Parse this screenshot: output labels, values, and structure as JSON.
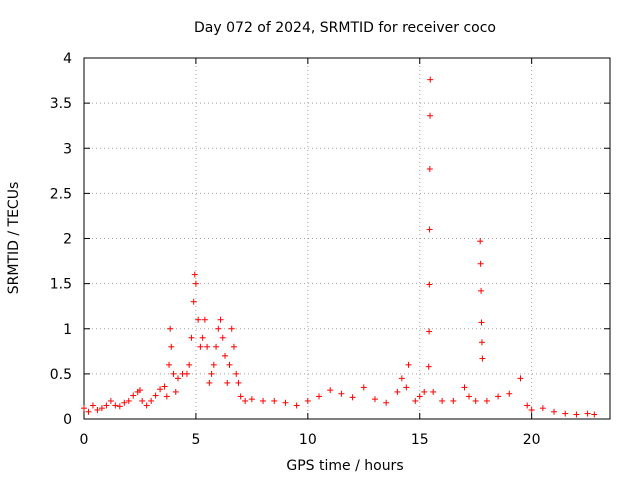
{
  "chart_data": {
    "type": "scatter",
    "title": "Day 072 of 2024, SRMTID for receiver coco",
    "xlabel": "GPS time / hours",
    "ylabel": "SRMTID / TECUs",
    "xlim": [
      0,
      23.5
    ],
    "ylim": [
      0,
      4
    ],
    "xticks": [
      0,
      5,
      10,
      15,
      20
    ],
    "yticks": [
      0,
      0.5,
      1,
      1.5,
      2,
      2.5,
      3,
      3.5,
      4
    ],
    "grid": true,
    "marker": "+",
    "marker_color": "#ff0000",
    "series": [
      {
        "name": "SRMTID",
        "points": [
          [
            0.0,
            0.12
          ],
          [
            0.2,
            0.08
          ],
          [
            0.4,
            0.15
          ],
          [
            0.6,
            0.1
          ],
          [
            0.8,
            0.12
          ],
          [
            1.0,
            0.15
          ],
          [
            1.2,
            0.2
          ],
          [
            1.4,
            0.15
          ],
          [
            1.6,
            0.14
          ],
          [
            1.8,
            0.18
          ],
          [
            2.0,
            0.2
          ],
          [
            2.2,
            0.26
          ],
          [
            2.4,
            0.3
          ],
          [
            2.5,
            0.32
          ],
          [
            2.6,
            0.2
          ],
          [
            2.8,
            0.15
          ],
          [
            3.0,
            0.2
          ],
          [
            3.2,
            0.26
          ],
          [
            3.4,
            0.33
          ],
          [
            3.6,
            0.36
          ],
          [
            3.7,
            0.25
          ],
          [
            3.8,
            0.6
          ],
          [
            3.85,
            1.0
          ],
          [
            3.9,
            0.8
          ],
          [
            4.0,
            0.5
          ],
          [
            4.1,
            0.3
          ],
          [
            4.2,
            0.45
          ],
          [
            4.4,
            0.5
          ],
          [
            4.6,
            0.5
          ],
          [
            4.7,
            0.6
          ],
          [
            4.8,
            0.9
          ],
          [
            4.9,
            1.3
          ],
          [
            4.95,
            1.6
          ],
          [
            5.0,
            1.5
          ],
          [
            5.1,
            1.1
          ],
          [
            5.2,
            0.8
          ],
          [
            5.3,
            0.9
          ],
          [
            5.4,
            1.1
          ],
          [
            5.5,
            0.8
          ],
          [
            5.6,
            0.4
          ],
          [
            5.7,
            0.5
          ],
          [
            5.8,
            0.6
          ],
          [
            5.9,
            0.8
          ],
          [
            6.0,
            1.0
          ],
          [
            6.1,
            1.1
          ],
          [
            6.2,
            0.9
          ],
          [
            6.3,
            0.7
          ],
          [
            6.4,
            0.4
          ],
          [
            6.5,
            0.6
          ],
          [
            6.6,
            1.0
          ],
          [
            6.7,
            0.8
          ],
          [
            6.8,
            0.5
          ],
          [
            6.9,
            0.4
          ],
          [
            7.0,
            0.25
          ],
          [
            7.2,
            0.2
          ],
          [
            7.5,
            0.22
          ],
          [
            8.0,
            0.2
          ],
          [
            8.5,
            0.2
          ],
          [
            9.0,
            0.18
          ],
          [
            9.5,
            0.15
          ],
          [
            10.0,
            0.2
          ],
          [
            10.5,
            0.25
          ],
          [
            11.0,
            0.32
          ],
          [
            11.5,
            0.28
          ],
          [
            12.0,
            0.24
          ],
          [
            12.5,
            0.35
          ],
          [
            13.0,
            0.22
          ],
          [
            13.5,
            0.18
          ],
          [
            14.0,
            0.3
          ],
          [
            14.2,
            0.45
          ],
          [
            14.4,
            0.35
          ],
          [
            14.5,
            0.6
          ],
          [
            14.8,
            0.2
          ],
          [
            15.0,
            0.25
          ],
          [
            15.2,
            0.3
          ],
          [
            15.4,
            0.58
          ],
          [
            15.42,
            0.97
          ],
          [
            15.43,
            1.49
          ],
          [
            15.44,
            2.1
          ],
          [
            15.45,
            2.77
          ],
          [
            15.46,
            3.36
          ],
          [
            15.47,
            3.76
          ],
          [
            15.6,
            0.3
          ],
          [
            16.0,
            0.2
          ],
          [
            16.5,
            0.2
          ],
          [
            17.0,
            0.35
          ],
          [
            17.2,
            0.25
          ],
          [
            17.5,
            0.2
          ],
          [
            17.7,
            1.97
          ],
          [
            17.72,
            1.72
          ],
          [
            17.74,
            1.42
          ],
          [
            17.76,
            1.07
          ],
          [
            17.78,
            0.85
          ],
          [
            17.8,
            0.67
          ],
          [
            18.0,
            0.2
          ],
          [
            18.5,
            0.25
          ],
          [
            19.0,
            0.28
          ],
          [
            19.5,
            0.45
          ],
          [
            19.8,
            0.15
          ],
          [
            20.0,
            0.1
          ],
          [
            20.5,
            0.12
          ],
          [
            21.0,
            0.08
          ],
          [
            21.5,
            0.06
          ],
          [
            22.0,
            0.05
          ],
          [
            22.5,
            0.06
          ],
          [
            22.8,
            0.05
          ]
        ]
      }
    ]
  }
}
